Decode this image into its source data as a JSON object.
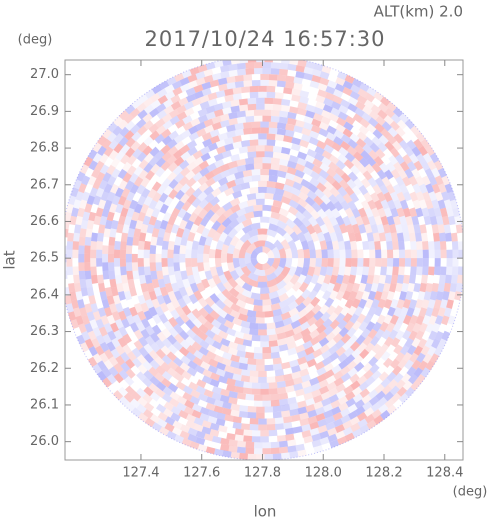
{
  "chart_data": {
    "type": "radar-ppi",
    "title": "2017/10/24 16:57:30",
    "subtitle": "ALT(km) 2.0",
    "x_label": "lon",
    "y_label": "lat",
    "x_unit": "(deg)",
    "y_unit": "(deg)",
    "xlim": [
      127.15,
      128.46
    ],
    "ylim": [
      25.95,
      27.04
    ],
    "xticks": [
      127.4,
      127.6,
      127.8,
      {
        "value": 128,
        "label": "128.0"
      },
      128.2,
      128.4
    ],
    "yticks": [
      {
        "value": 26,
        "label": "26.0"
      },
      26.1,
      26.2,
      26.3,
      26.4,
      26.5,
      26.6,
      26.7,
      26.8,
      26.9,
      {
        "value": 27,
        "label": "27.0"
      }
    ],
    "center": [
      127.8,
      26.5
    ]
  }
}
